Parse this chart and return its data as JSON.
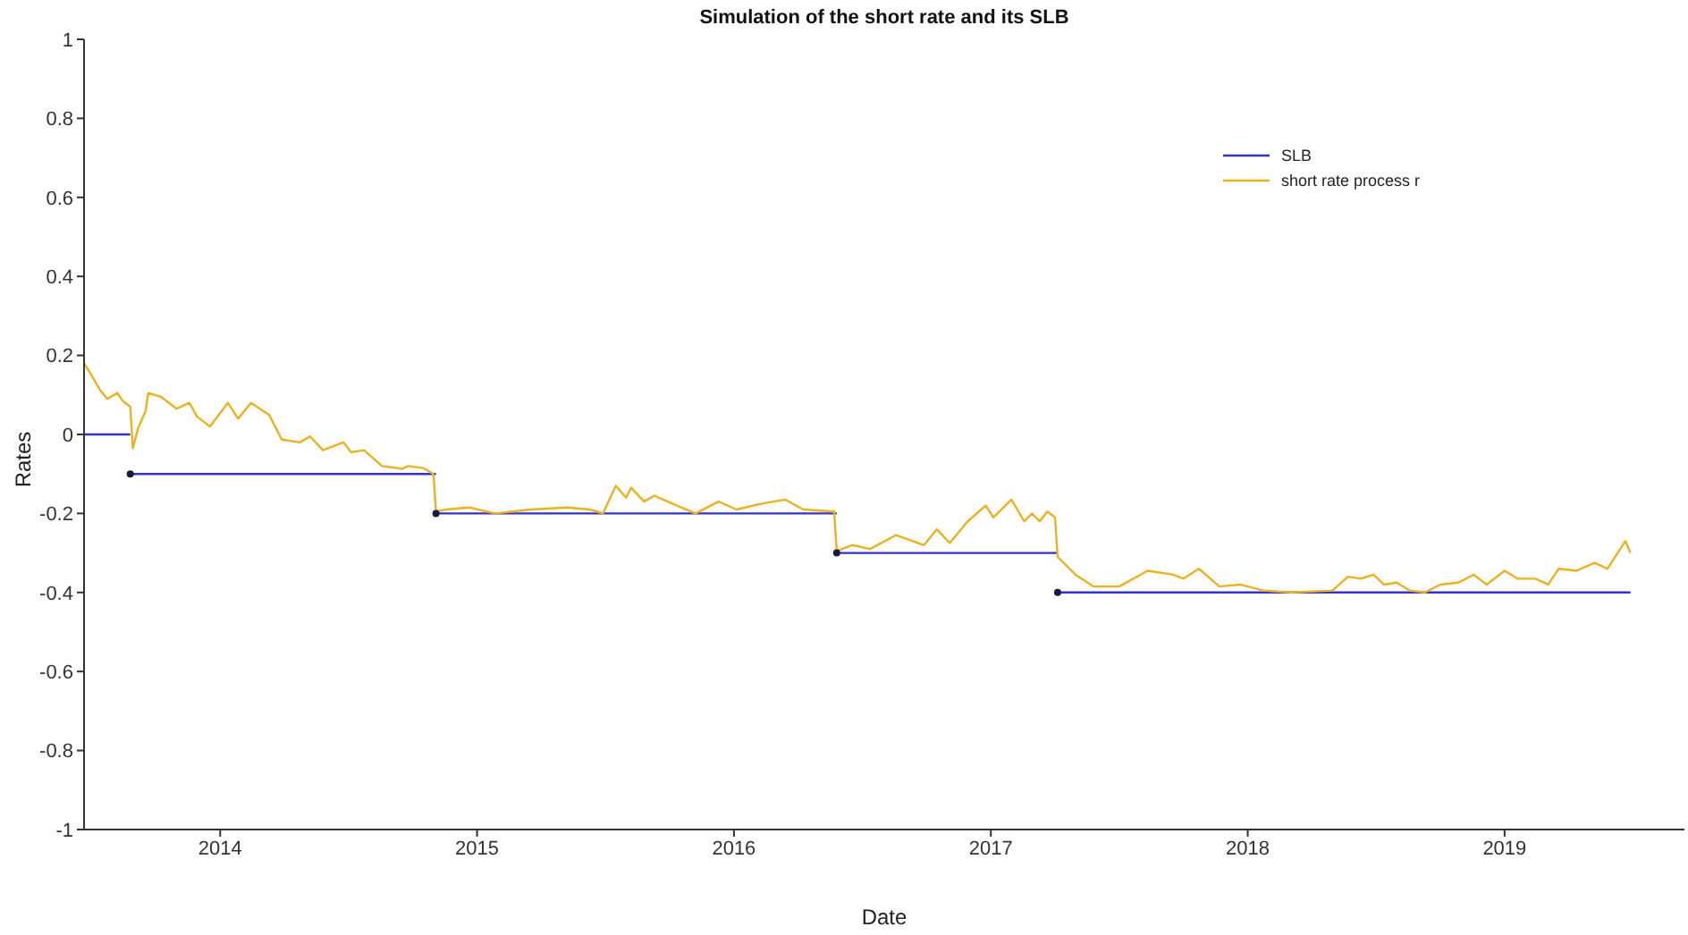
{
  "chart_data": {
    "type": "line",
    "title": "Simulation of the short rate and its SLB",
    "xlabel": "Date",
    "ylabel": "Rates",
    "xlim": [
      2013.47,
      2019.7
    ],
    "xticks": [
      2014,
      2015,
      2016,
      2017,
      2018,
      2019
    ],
    "ylim": [
      -1,
      1
    ],
    "yticks": [
      -1,
      -0.8,
      -0.6,
      -0.4,
      -0.2,
      0,
      0.2,
      0.4,
      0.6,
      0.8,
      1
    ],
    "legend": "top right",
    "series": [
      {
        "name": "SLB",
        "type": "line",
        "color": "#3333cc",
        "x": [
          2013.47,
          2013.65,
          2013.65,
          2014.84,
          2014.84,
          2016.4,
          2016.4,
          2017.26,
          2017.26,
          2019.49
        ],
        "values": [
          0,
          0,
          -0.1,
          -0.1,
          -0.2,
          -0.2,
          -0.3,
          -0.3,
          -0.4,
          -0.4
        ]
      },
      {
        "name": "short rate process r",
        "type": "line",
        "color": "#edb120",
        "x": [
          2013.47,
          2013.49,
          2013.53,
          2013.56,
          2013.6,
          2013.62,
          2013.65,
          2013.66,
          2013.68,
          2013.71,
          2013.72,
          2013.77,
          2013.83,
          2013.88,
          2013.91,
          2013.96,
          2014.03,
          2014.07,
          2014.12,
          2014.19,
          2014.24,
          2014.31,
          2014.35,
          2014.4,
          2014.48,
          2014.51,
          2014.56,
          2014.63,
          2014.71,
          2014.73,
          2014.79,
          2014.83,
          2014.84,
          2014.88,
          2014.97,
          2015.07,
          2015.21,
          2015.35,
          2015.44,
          2015.49,
          2015.54,
          2015.58,
          2015.6,
          2015.65,
          2015.69,
          2015.76,
          2015.85,
          2015.94,
          2016.01,
          2016.11,
          2016.2,
          2016.27,
          2016.39,
          2016.4,
          2016.46,
          2016.53,
          2016.63,
          2016.74,
          2016.79,
          2016.84,
          2016.91,
          2016.98,
          2017.01,
          2017.08,
          2017.13,
          2017.16,
          2017.19,
          2017.22,
          2017.25,
          2017.26,
          2017.33,
          2017.4,
          2017.5,
          2017.61,
          2017.71,
          2017.75,
          2017.81,
          2017.89,
          2017.97,
          2018.06,
          2018.17,
          2018.33,
          2018.39,
          2018.44,
          2018.49,
          2018.53,
          2018.58,
          2018.63,
          2018.69,
          2018.75,
          2018.82,
          2018.88,
          2018.93,
          2019.0,
          2019.05,
          2019.12,
          2019.17,
          2019.21,
          2019.28,
          2019.35,
          2019.4,
          2019.47,
          2019.49
        ],
        "values": [
          0.18,
          0.16,
          0.115,
          0.09,
          0.105,
          0.085,
          0.07,
          -0.035,
          0.015,
          0.06,
          0.105,
          0.095,
          0.065,
          0.08,
          0.045,
          0.02,
          0.08,
          0.04,
          0.08,
          0.05,
          -0.013,
          -0.02,
          -0.005,
          -0.04,
          -0.02,
          -0.045,
          -0.04,
          -0.08,
          -0.087,
          -0.08,
          -0.085,
          -0.1,
          -0.195,
          -0.19,
          -0.185,
          -0.2,
          -0.19,
          -0.185,
          -0.19,
          -0.2,
          -0.13,
          -0.16,
          -0.135,
          -0.17,
          -0.155,
          -0.175,
          -0.2,
          -0.17,
          -0.19,
          -0.175,
          -0.165,
          -0.19,
          -0.195,
          -0.295,
          -0.28,
          -0.29,
          -0.255,
          -0.28,
          -0.24,
          -0.275,
          -0.22,
          -0.18,
          -0.21,
          -0.165,
          -0.22,
          -0.2,
          -0.22,
          -0.195,
          -0.21,
          -0.31,
          -0.355,
          -0.385,
          -0.385,
          -0.345,
          -0.355,
          -0.365,
          -0.34,
          -0.385,
          -0.38,
          -0.395,
          -0.4,
          -0.395,
          -0.36,
          -0.365,
          -0.355,
          -0.38,
          -0.375,
          -0.395,
          -0.4,
          -0.38,
          -0.375,
          -0.355,
          -0.38,
          -0.345,
          -0.365,
          -0.365,
          -0.38,
          -0.34,
          -0.345,
          -0.325,
          -0.34,
          -0.27,
          -0.3
        ]
      },
      {
        "type": "scatter",
        "color": "#1a1a40",
        "marker": "circle",
        "x": [
          2013.65,
          2014.84,
          2016.4,
          2017.26
        ],
        "values": [
          -0.1,
          -0.2,
          -0.3,
          -0.4
        ]
      }
    ]
  }
}
